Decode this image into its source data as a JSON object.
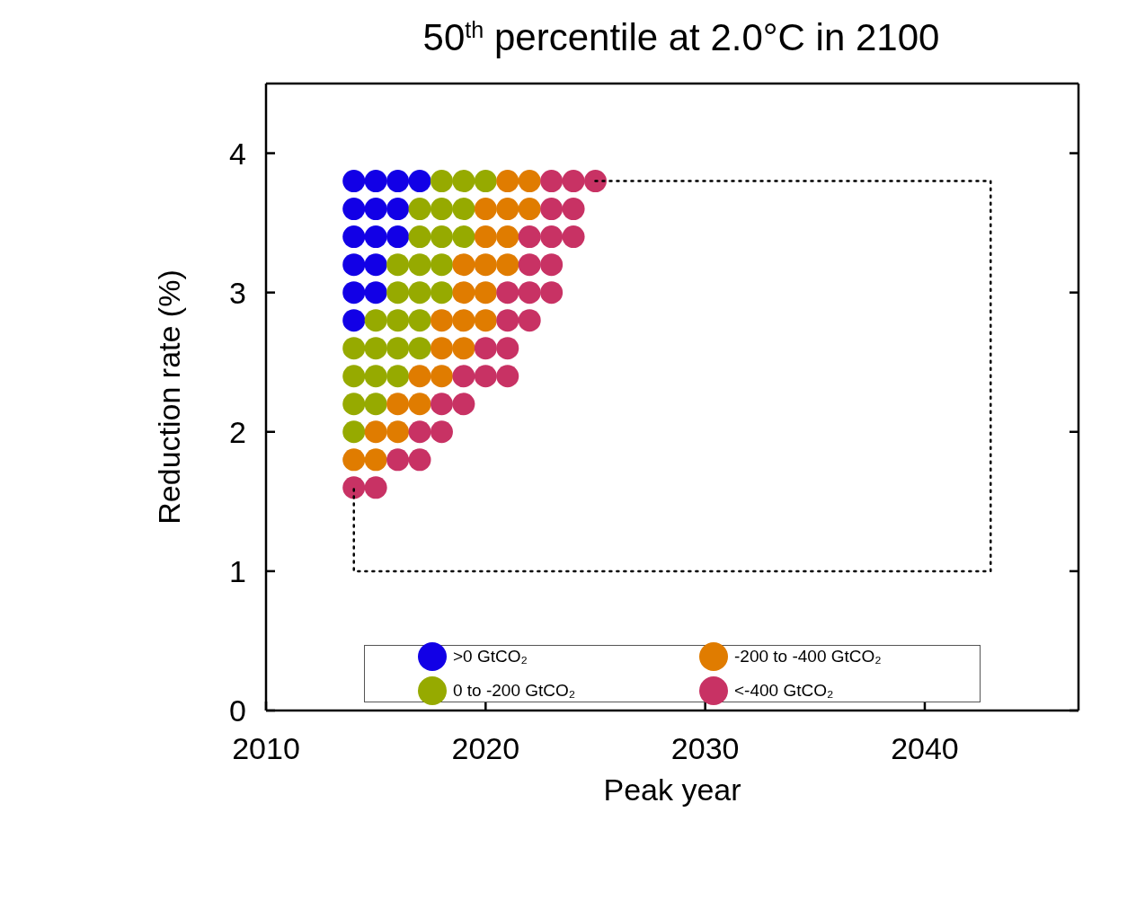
{
  "chart_data": {
    "type": "scatter",
    "title": "50$^{th}$ percentile at 2.0°C in 2100",
    "xlabel": "Peak year",
    "ylabel": "Reduction rate (%)",
    "xlim": [
      2010,
      2047
    ],
    "xticks": [
      2010,
      2020,
      2030,
      2040
    ],
    "ylim": [
      0,
      4.5
    ],
    "yticks": [
      0,
      1,
      2,
      3,
      4
    ],
    "legend": "bottom",
    "marker": "circle",
    "series": [
      {
        "name": ">0 GtCO₂",
        "color": "#1200e6",
        "x": [
          2014,
          2015,
          2016,
          2017,
          2014,
          2015,
          2016,
          2014,
          2015,
          2016,
          2014,
          2015,
          2014,
          2015,
          2014
        ],
        "values": [
          3.8,
          3.8,
          3.8,
          3.8,
          3.6,
          3.6,
          3.6,
          3.4,
          3.4,
          3.4,
          3.2,
          3.2,
          3.0,
          3.0,
          2.8
        ]
      },
      {
        "name": "0 to -200 GtCO₂",
        "color": "#96aa00",
        "x": [
          2018,
          2019,
          2020,
          2017,
          2018,
          2019,
          2017,
          2018,
          2019,
          2016,
          2017,
          2018,
          2016,
          2017,
          2018,
          2015,
          2016,
          2017,
          2014,
          2015,
          2016,
          2017,
          2014,
          2015,
          2016,
          2014,
          2015,
          2014
        ],
        "values": [
          3.8,
          3.8,
          3.8,
          3.6,
          3.6,
          3.6,
          3.4,
          3.4,
          3.4,
          3.2,
          3.2,
          3.2,
          3.0,
          3.0,
          3.0,
          2.8,
          2.8,
          2.8,
          2.6,
          2.6,
          2.6,
          2.6,
          2.4,
          2.4,
          2.4,
          2.2,
          2.2,
          2.0
        ]
      },
      {
        "name": "-200 to -400 GtCO₂",
        "color": "#e07c00",
        "x": [
          2021,
          2022,
          2020,
          2021,
          2022,
          2020,
          2021,
          2019,
          2020,
          2021,
          2019,
          2020,
          2018,
          2019,
          2020,
          2018,
          2019,
          2017,
          2018,
          2016,
          2017,
          2015,
          2016,
          2014,
          2015
        ],
        "values": [
          3.8,
          3.8,
          3.6,
          3.6,
          3.6,
          3.4,
          3.4,
          3.2,
          3.2,
          3.2,
          3.0,
          3.0,
          2.8,
          2.8,
          2.8,
          2.6,
          2.6,
          2.4,
          2.4,
          2.2,
          2.2,
          2.0,
          2.0,
          1.8,
          1.8
        ]
      },
      {
        "name": "<-400 GtCO₂",
        "color": "#c83264",
        "x": [
          2023,
          2024,
          2025,
          2023,
          2024,
          2022,
          2023,
          2024,
          2022,
          2023,
          2021,
          2022,
          2023,
          2021,
          2022,
          2020,
          2021,
          2019,
          2020,
          2021,
          2018,
          2019,
          2017,
          2018,
          2016,
          2017,
          2014,
          2015
        ],
        "values": [
          3.8,
          3.8,
          3.8,
          3.6,
          3.6,
          3.4,
          3.4,
          3.4,
          3.2,
          3.2,
          3.0,
          3.0,
          3.0,
          2.8,
          2.8,
          2.6,
          2.6,
          2.4,
          2.4,
          2.4,
          2.2,
          2.2,
          2.0,
          2.0,
          1.8,
          1.8,
          1.6,
          1.6
        ]
      },
      {
        "type": "line",
        "line_style": "dotted",
        "marker": "none",
        "color": "#000000",
        "x": [
          2025,
          2043,
          2043,
          2014,
          2014
        ],
        "values": [
          3.8,
          3.8,
          1,
          1,
          1.6
        ]
      }
    ]
  }
}
